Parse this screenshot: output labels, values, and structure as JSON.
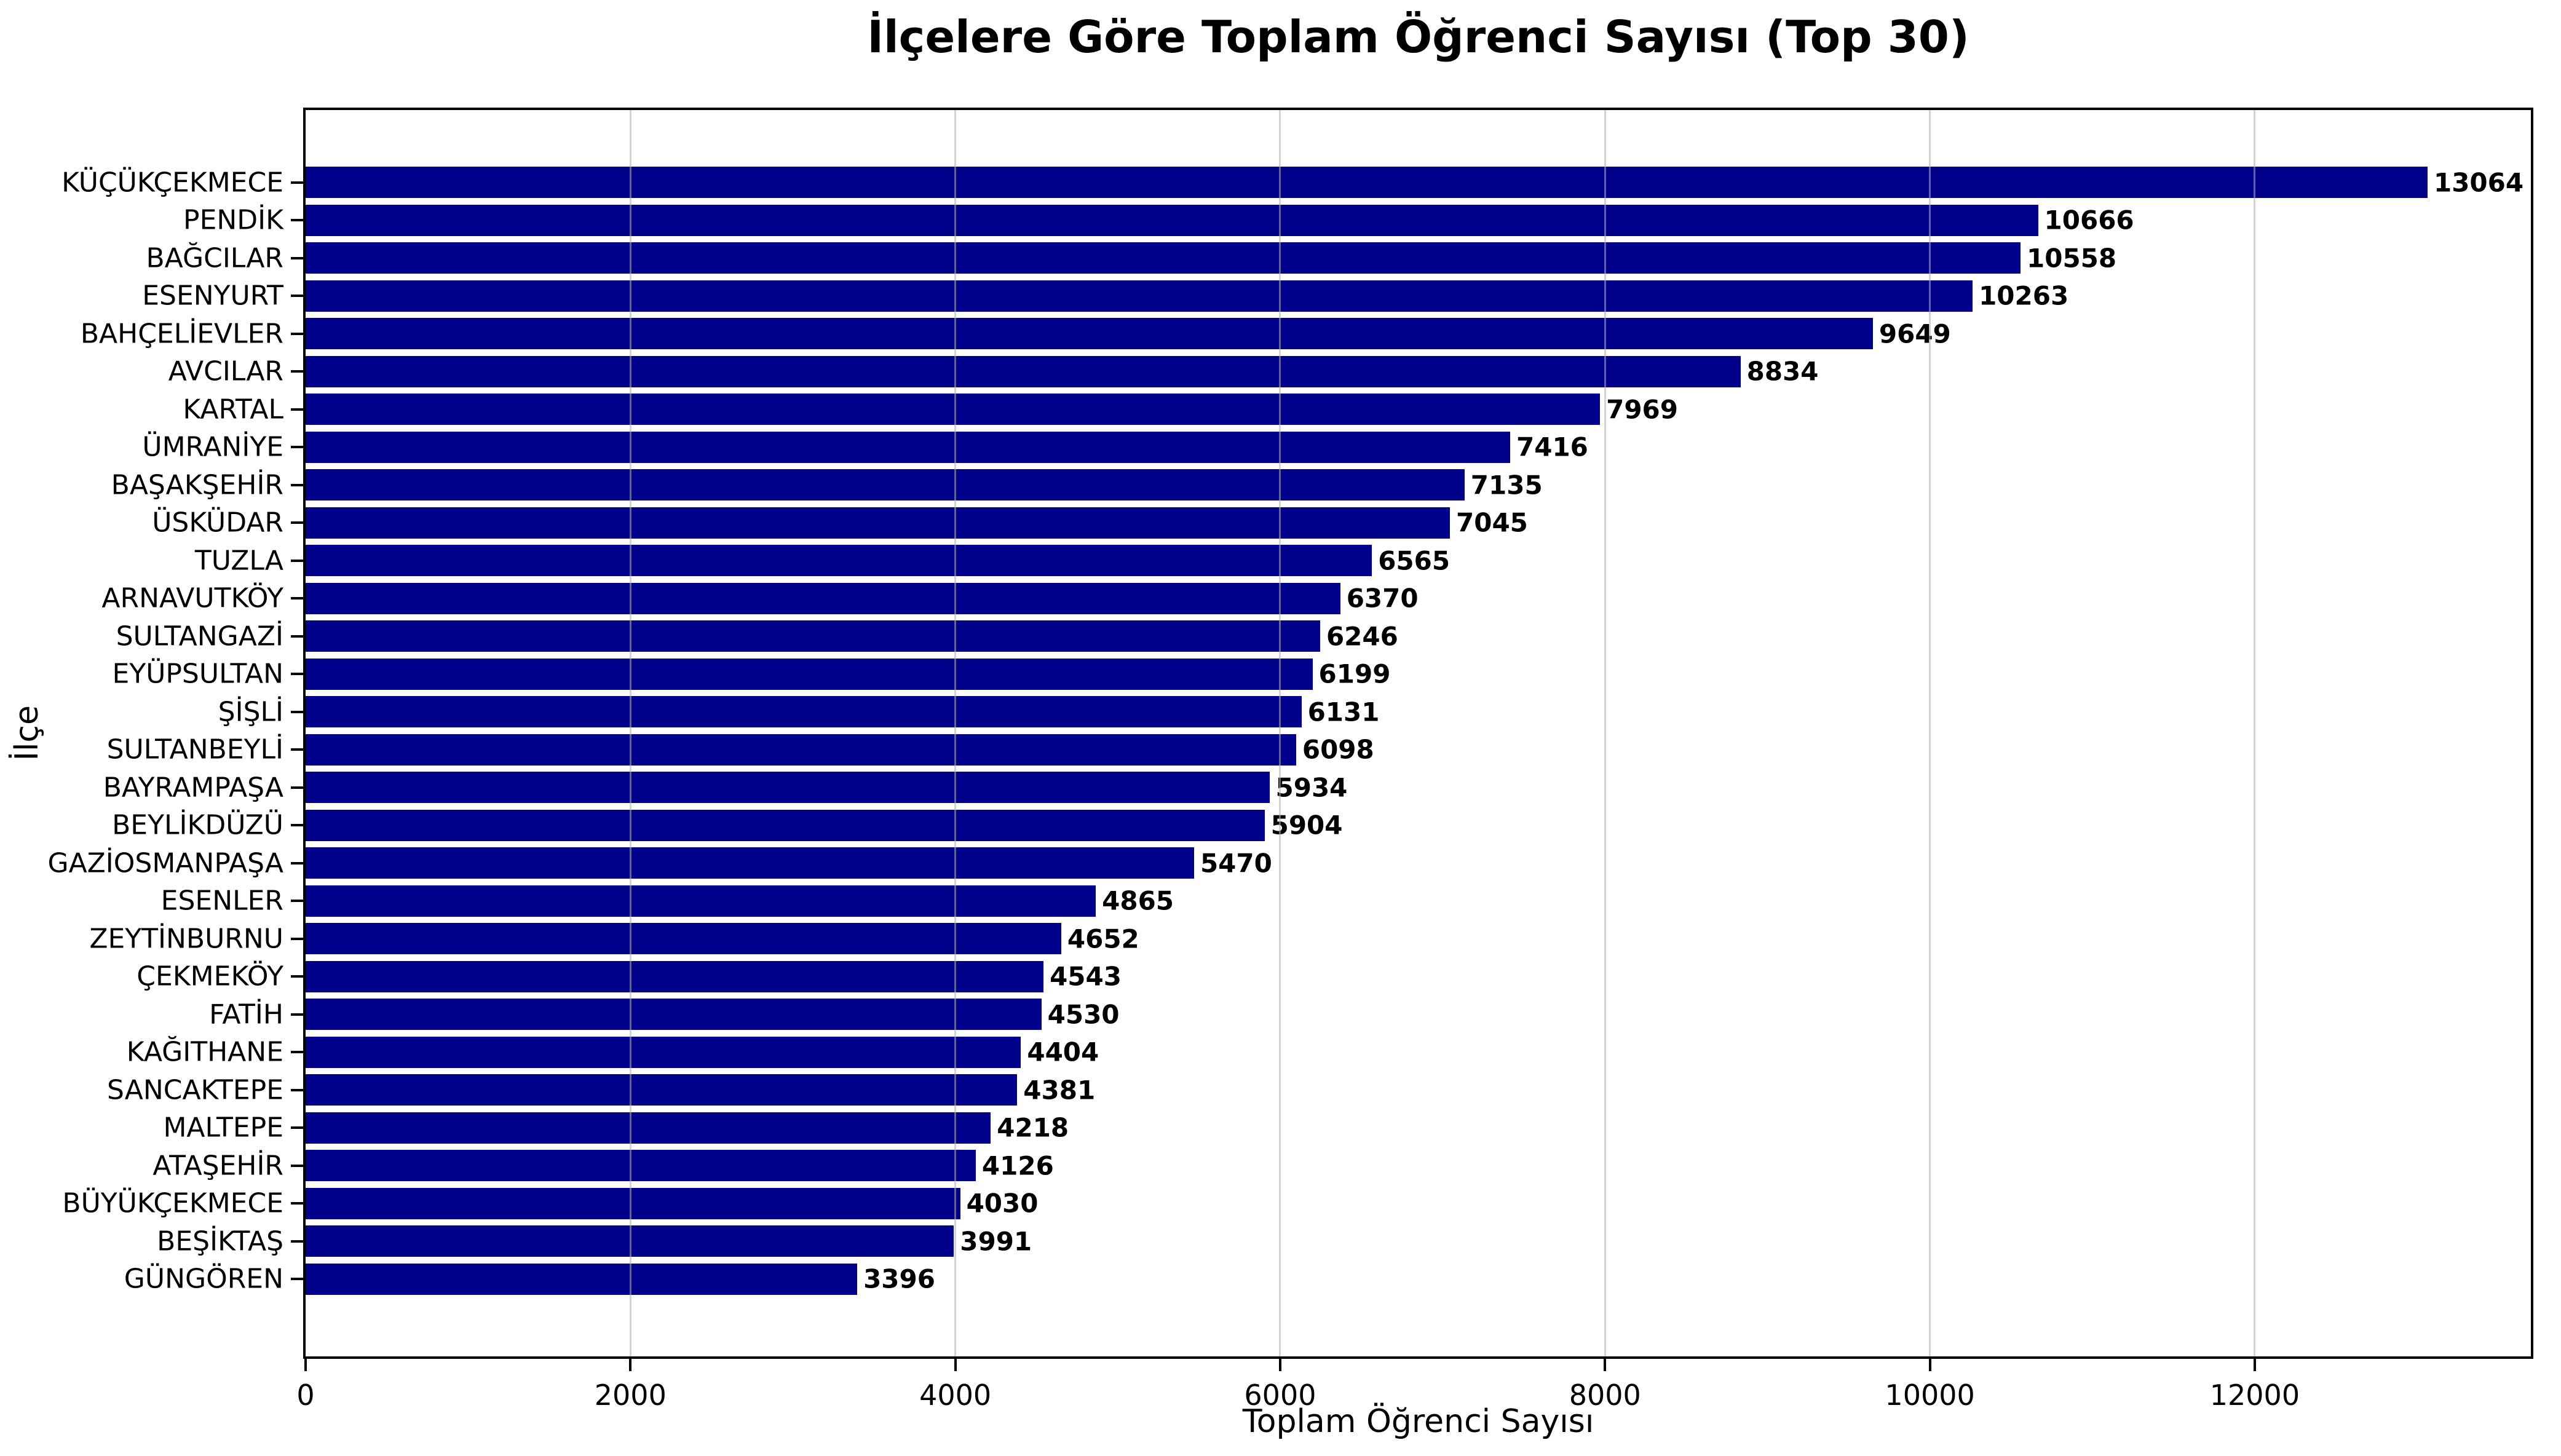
{
  "chart_data": {
    "type": "bar",
    "orientation": "horizontal",
    "title": "İlçelere Göre Toplam Öğrenci Sayısı (Top 30)",
    "xlabel": "Toplam Öğrenci Sayısı",
    "ylabel": "İlçe",
    "xlim": [
      0,
      13700
    ],
    "x_ticks": [
      0,
      2000,
      4000,
      6000,
      8000,
      10000,
      12000
    ],
    "grid": "vertical-gridlines-over-bars",
    "legend": "none",
    "bar_color": "#00008B",
    "grid_color": "#b0b0b0",
    "axis_color": "#000000",
    "background_color": "#ffffff",
    "categories": [
      "KÜÇÜKÇEKMECE",
      "PENDİK",
      "BAĞCILAR",
      "ESENYURT",
      "BAHÇELİEVLER",
      "AVCILAR",
      "KARTAL",
      "ÜMRANİYE",
      "BAŞAKŞEHİR",
      "ÜSKÜDAR",
      "TUZLA",
      "ARNAVUTKÖY",
      "SULTANGAZİ",
      "EYÜPSULTAN",
      "ŞİŞLİ",
      "SULTANBEYLİ",
      "BAYRAMPAŞA",
      "BEYLİKDÜZÜ",
      "GAZİOSMANPAŞA",
      "ESENLER",
      "ZEYTİNBURNU",
      "ÇEKMEKÖY",
      "FATİH",
      "KAĞITHANE",
      "SANCAKTEPE",
      "MALTEPE",
      "ATAŞEHİR",
      "BÜYÜKÇEKMECE",
      "BEŞİKTAŞ",
      "GÜNGÖREN"
    ],
    "values": [
      13064,
      10666,
      10558,
      10263,
      9649,
      8834,
      7969,
      7416,
      7135,
      7045,
      6565,
      6370,
      6246,
      6199,
      6131,
      6098,
      5934,
      5904,
      5470,
      4865,
      4652,
      4543,
      4530,
      4404,
      4381,
      4218,
      4126,
      4030,
      3991,
      3396
    ]
  }
}
